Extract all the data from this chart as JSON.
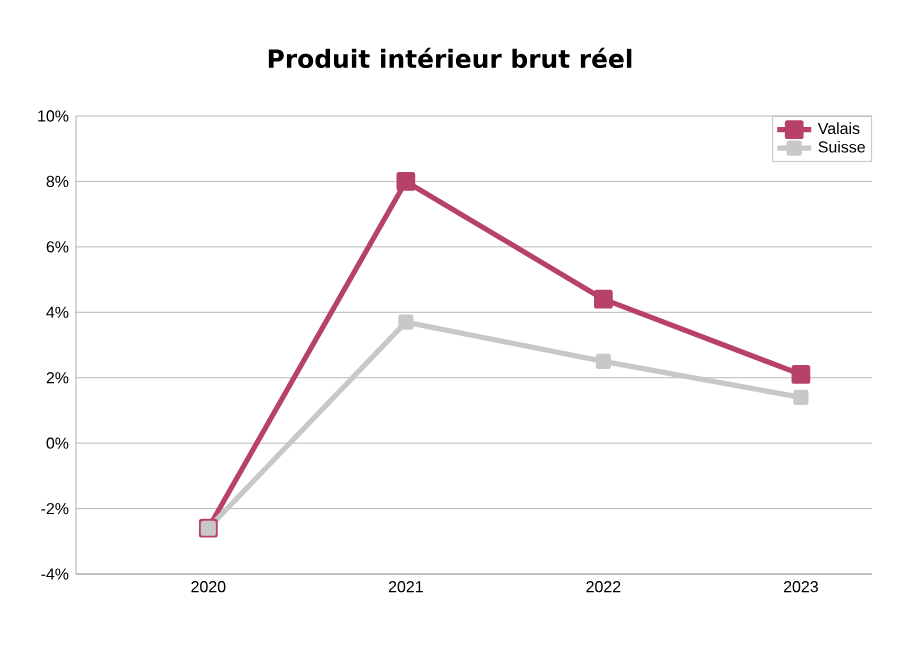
{
  "chart_data": {
    "type": "line",
    "title": "Produit intérieur brut réel",
    "categories": [
      "2020",
      "2021",
      "2022",
      "2023"
    ],
    "series": [
      {
        "name": "Valais",
        "color": "#b8416c",
        "values": [
          -2.6,
          8.0,
          4.4,
          2.1
        ]
      },
      {
        "name": "Suisse",
        "color": "#c8c8c8",
        "values": [
          -2.6,
          3.7,
          2.5,
          1.4
        ]
      }
    ],
    "ylim": [
      -4,
      10
    ],
    "yticks": [
      {
        "value": -4,
        "label": "-4%"
      },
      {
        "value": -2,
        "label": "-2%"
      },
      {
        "value": 0,
        "label": "0%"
      },
      {
        "value": 2,
        "label": "2%"
      },
      {
        "value": 4,
        "label": "4%"
      },
      {
        "value": 6,
        "label": "6%"
      },
      {
        "value": 8,
        "label": "8%"
      },
      {
        "value": 10,
        "label": "10%"
      }
    ],
    "grid": "y",
    "legend": "top right",
    "marker": "square",
    "line_style": "solid"
  }
}
